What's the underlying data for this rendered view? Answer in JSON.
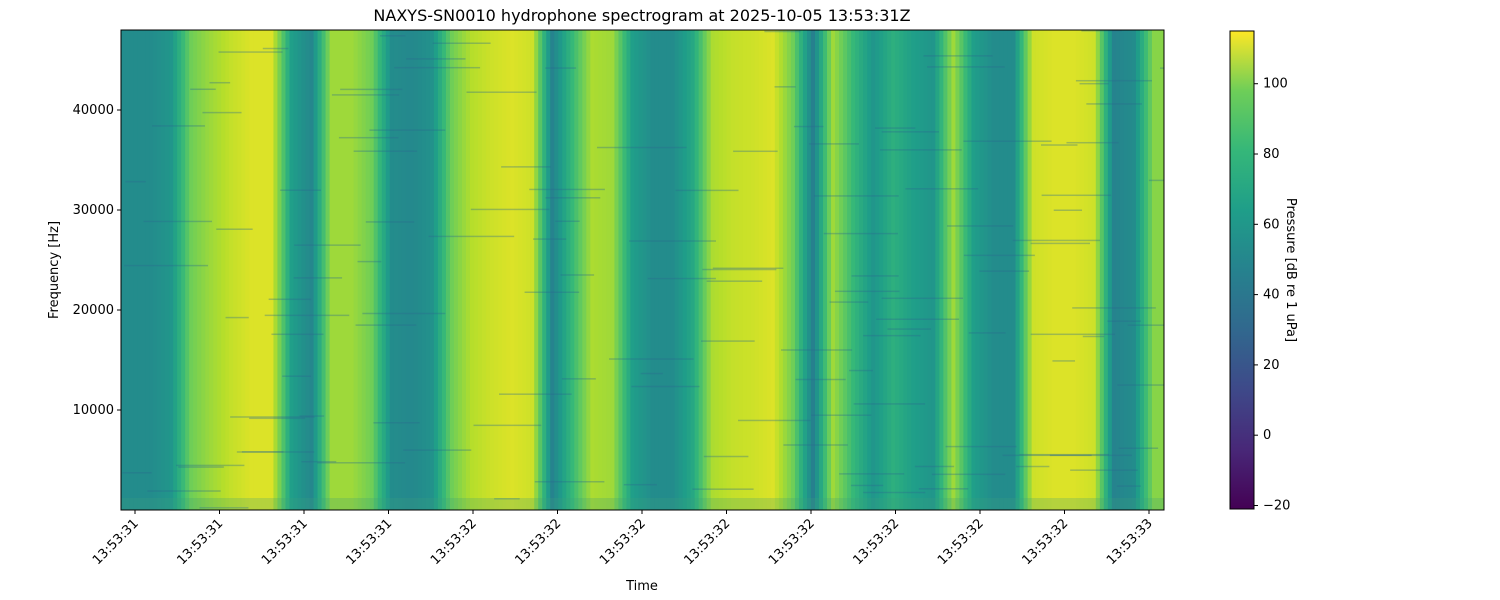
{
  "chart_data": {
    "type": "heatmap",
    "title": "NAXYS-SN0010 hydrophone spectrogram at 2025-10-05 13:53:31Z",
    "xlabel": "Time",
    "ylabel": "Frequency [Hz]",
    "colorbar_label": "Pressure [dB re 1 uPa]",
    "colormap": "viridis",
    "ylim": [
      0,
      48000
    ],
    "yticks": [
      10000,
      20000,
      30000,
      40000
    ],
    "xtick_labels": [
      "13:53:31",
      "13:53:31",
      "13:53:31",
      "13:53:31",
      "13:53:32",
      "13:53:32",
      "13:53:32",
      "13:53:32",
      "13:53:32",
      "13:53:32",
      "13:53:32",
      "13:53:32",
      "13:53:33"
    ],
    "clim": [
      -21,
      115
    ],
    "colorbar_ticks": [
      -20,
      0,
      20,
      40,
      60,
      80,
      100
    ],
    "time_profile_db": [
      45,
      45,
      50,
      85,
      95,
      103,
      108,
      108,
      55,
      42,
      95,
      95,
      85,
      45,
      43,
      48,
      85,
      100,
      105,
      108,
      105,
      40,
      70,
      98,
      95,
      55,
      45,
      45,
      60,
      98,
      103,
      105,
      108,
      85,
      38,
      95,
      70,
      50,
      65,
      55,
      50,
      95,
      55,
      45,
      45,
      105,
      108,
      108,
      105,
      40,
      45,
      90
    ]
  }
}
